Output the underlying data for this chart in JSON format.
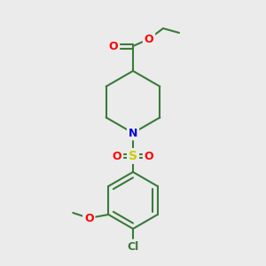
{
  "background_color": "#ebebeb",
  "bond_color": "#3a7a3a",
  "atom_colors": {
    "O": "#ff0000",
    "N": "#0000dd",
    "S": "#cccc00",
    "Cl": "#3a7a3a",
    "C": "#3a7a3a"
  },
  "figsize": [
    3.0,
    3.0
  ],
  "dpi": 100
}
